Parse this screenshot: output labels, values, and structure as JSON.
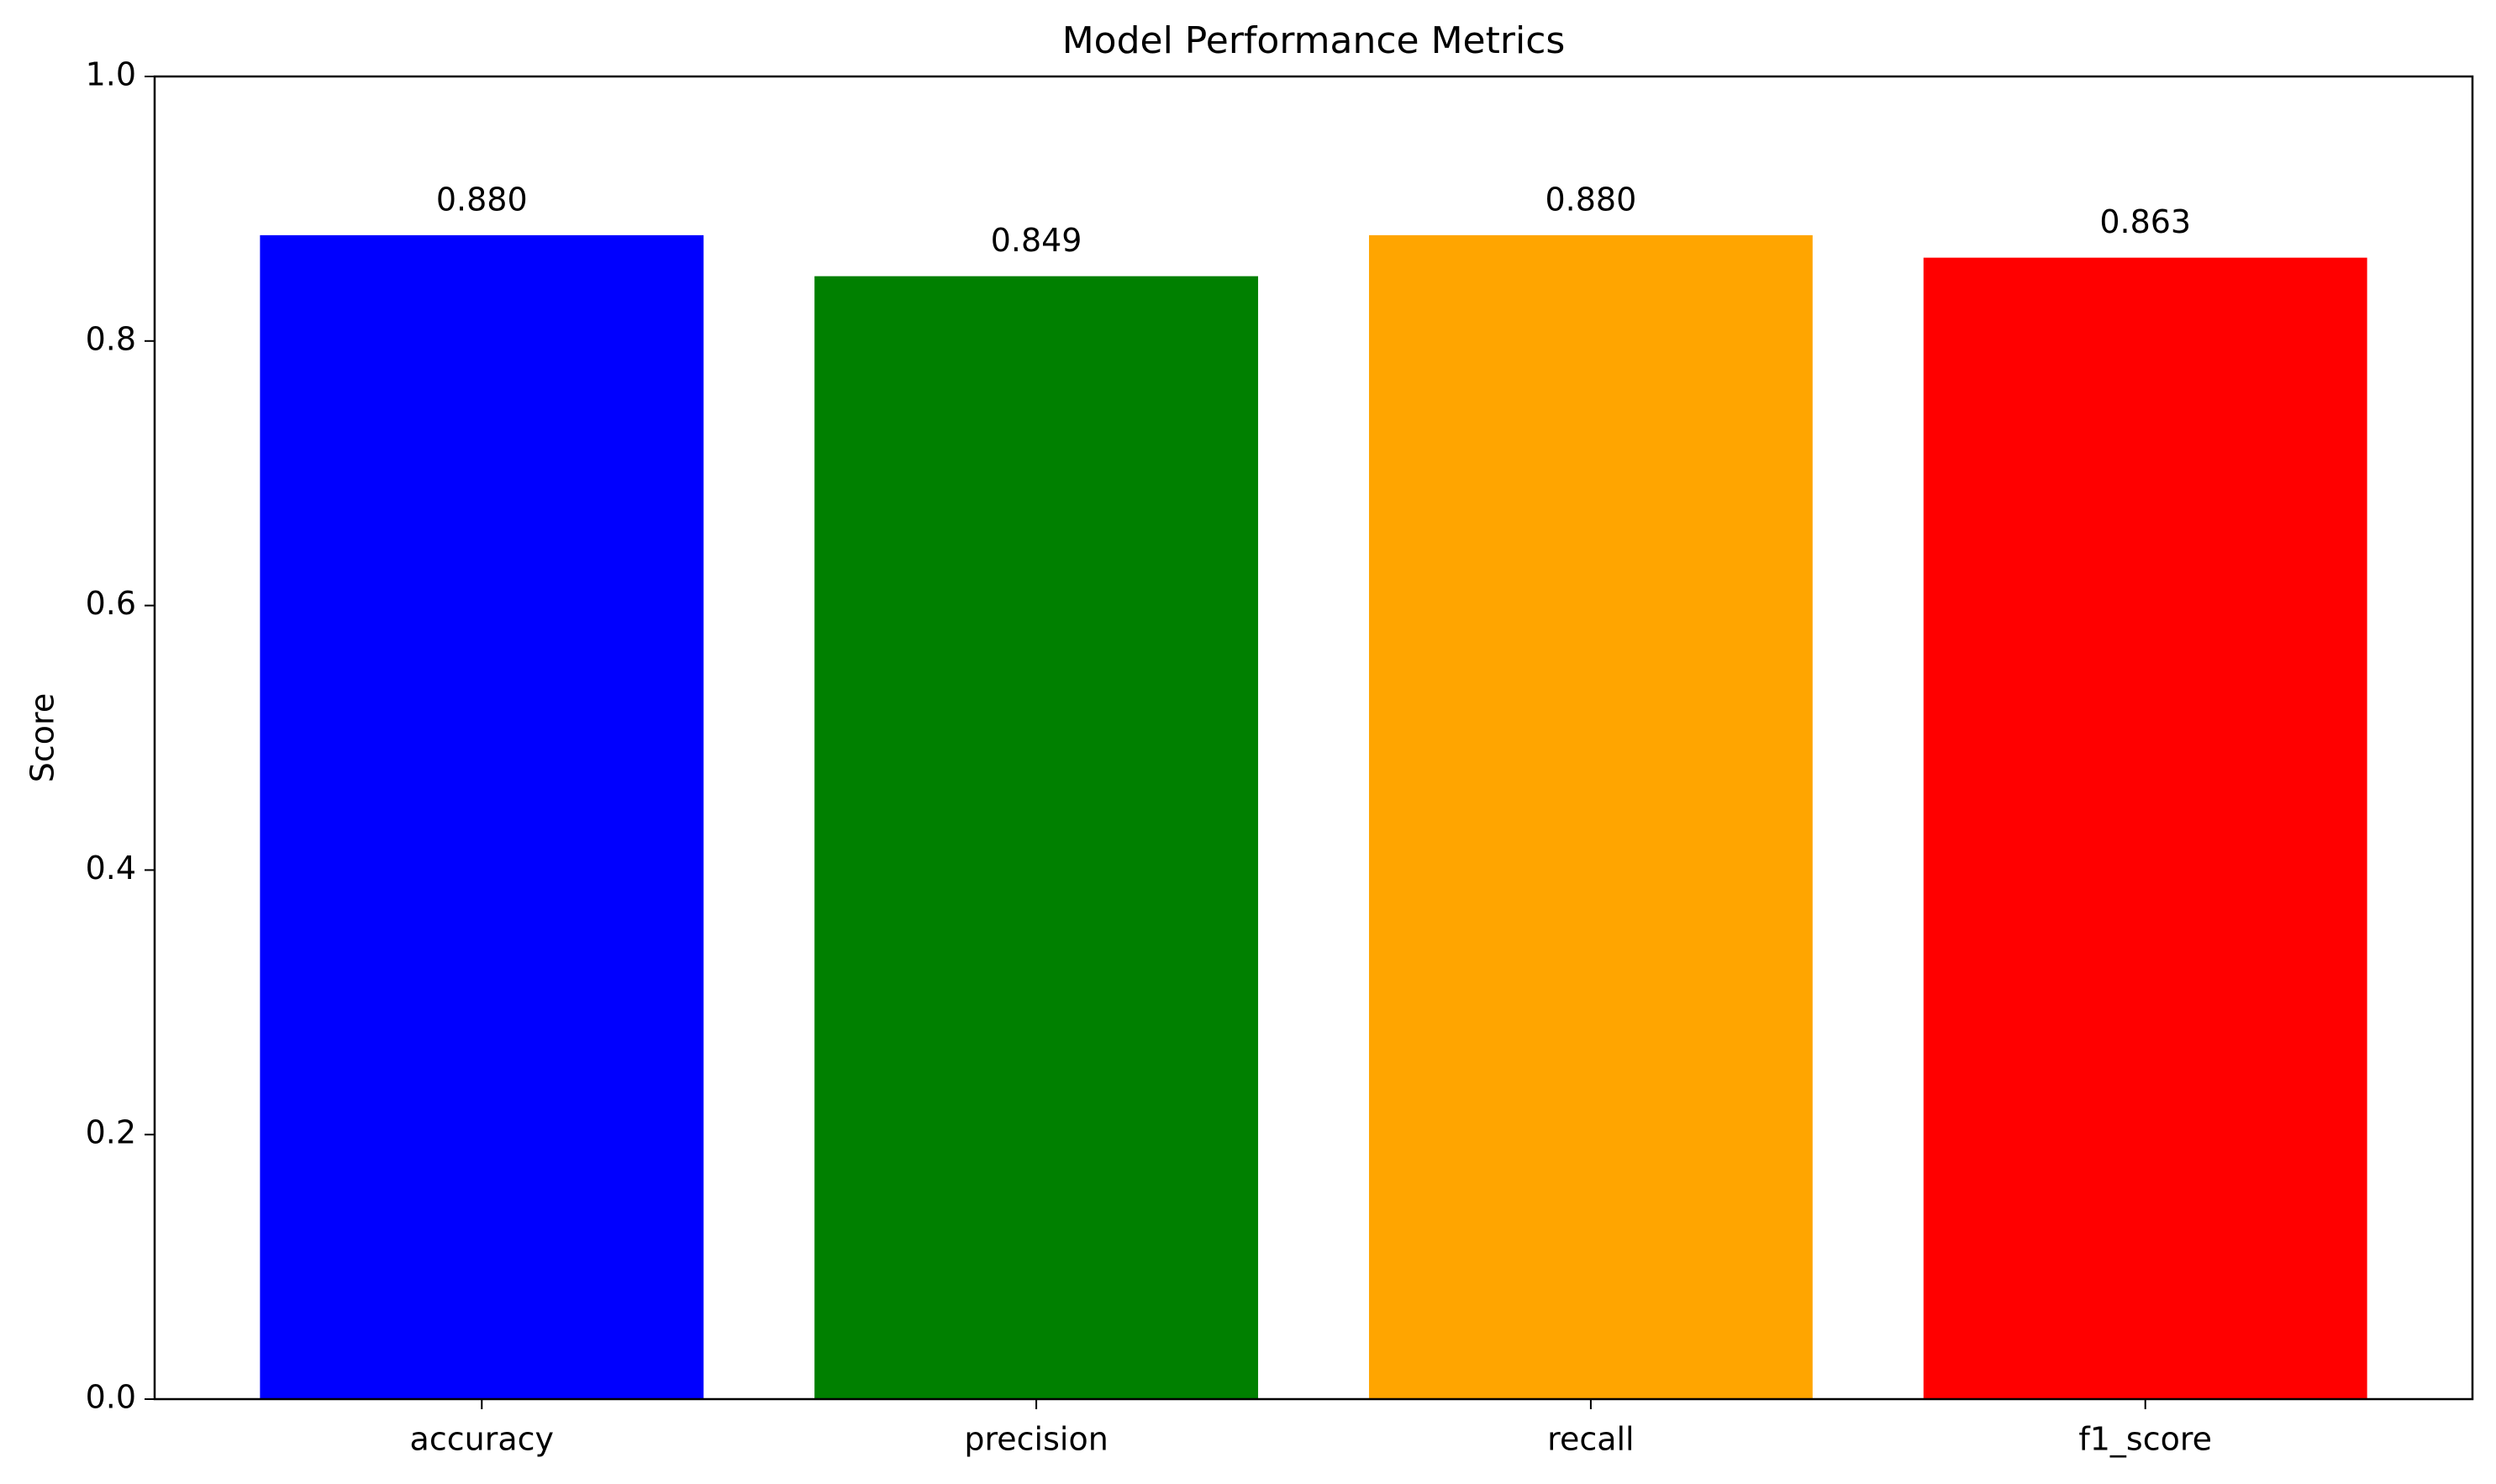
{
  "chart_data": {
    "type": "bar",
    "title": "Model Performance Metrics",
    "y_label": "Score",
    "categories": [
      "accuracy",
      "precision",
      "recall",
      "f1_score"
    ],
    "values": [
      0.88,
      0.849,
      0.88,
      0.863
    ],
    "value_labels": [
      "0.880",
      "0.849",
      "0.880",
      "0.863"
    ],
    "colors": [
      "#0000ff",
      "#008000",
      "#ffa500",
      "#ff0000"
    ],
    "ylim": [
      0,
      1
    ],
    "yticks": [
      {
        "value": 0,
        "label": "0.0"
      },
      0.2,
      0.4,
      0.6,
      0.8,
      {
        "value": 1,
        "label": "1.0"
      }
    ],
    "grid": false
  }
}
